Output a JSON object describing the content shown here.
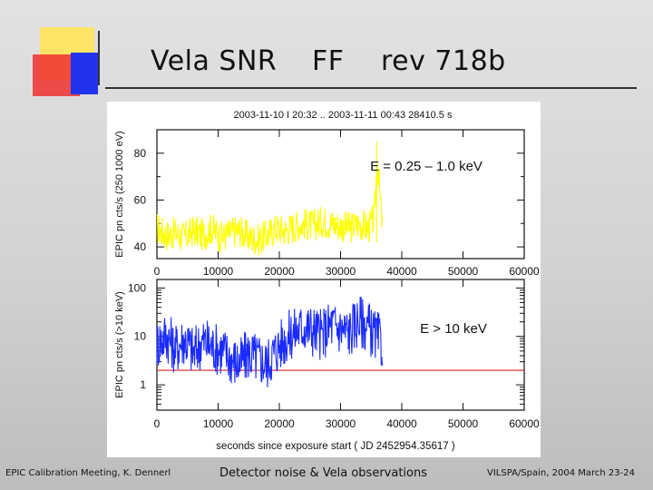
{
  "slide": {
    "title_parts": [
      "Vela SNR",
      "FF",
      "rev 718b"
    ],
    "footer_left": "EPIC Calibration Meeting, K. Dennerl",
    "footer_mid": "Detector noise & Vela observations",
    "footer_right": "VILSPA/Spain, 2004 March 23-24",
    "colors": {
      "deco_yellow": "#ffe566",
      "deco_red": "#f03030",
      "deco_blue": "#2233ee"
    }
  },
  "figure": {
    "header": "2003-11-10 I 20:32 .. 2003-11-11 00:43   28410.5 s",
    "xlabel": "seconds since exposure start  ( JD 2452954.35617 )"
  },
  "chart_data": [
    {
      "type": "line",
      "scale": "linear",
      "color": "#ffff00",
      "ylabel": "EPIC pn cts/s  (250 1000 eV)",
      "annotation": "E = 0.25 – 1.0 keV",
      "xlim": [
        0,
        60000
      ],
      "ylim": [
        35,
        90
      ],
      "xticks": [
        0,
        10000,
        20000,
        30000,
        40000,
        50000,
        60000
      ],
      "yticks": [
        40,
        60,
        80
      ],
      "series": [
        {
          "x": [
            0,
            1500,
            3000,
            4500,
            6000,
            7500,
            9000,
            10500,
            12000,
            13500,
            15000,
            16500,
            18000,
            19500,
            21000,
            22500,
            24000,
            25500,
            27000,
            28500,
            30000,
            31500,
            33000,
            34500,
            35500,
            36000,
            36800
          ],
          "y": [
            48,
            45,
            46,
            44,
            47,
            45,
            48,
            44,
            46,
            47,
            44,
            43,
            45,
            48,
            47,
            49,
            50,
            49,
            51,
            50,
            49,
            48,
            50,
            48,
            52,
            78,
            49
          ]
        }
      ]
    },
    {
      "type": "line",
      "scale": "log",
      "color": "#1a2bff",
      "ylabel": "EPIC pn cts/s  (>10 keV)",
      "annotation": "E > 10 keV",
      "xlim": [
        0,
        60000
      ],
      "ylim": [
        0.3,
        150
      ],
      "xticks": [
        0,
        10000,
        20000,
        30000,
        40000,
        50000,
        60000
      ],
      "yticks": [
        1,
        10,
        100
      ],
      "threshold": {
        "value": 2,
        "color": "#e02020"
      },
      "series": [
        {
          "x": [
            0,
            1500,
            3000,
            4500,
            6000,
            7500,
            9000,
            10500,
            12000,
            13500,
            15000,
            16500,
            18000,
            19500,
            21000,
            22500,
            24000,
            25500,
            27000,
            28500,
            30000,
            31500,
            33000,
            34500,
            35500,
            36800
          ],
          "y": [
            8,
            12,
            6,
            10,
            5,
            9,
            7,
            6,
            4,
            3,
            5,
            4,
            3,
            6,
            10,
            14,
            18,
            15,
            12,
            20,
            16,
            14,
            25,
            18,
            12,
            8
          ]
        }
      ]
    }
  ]
}
